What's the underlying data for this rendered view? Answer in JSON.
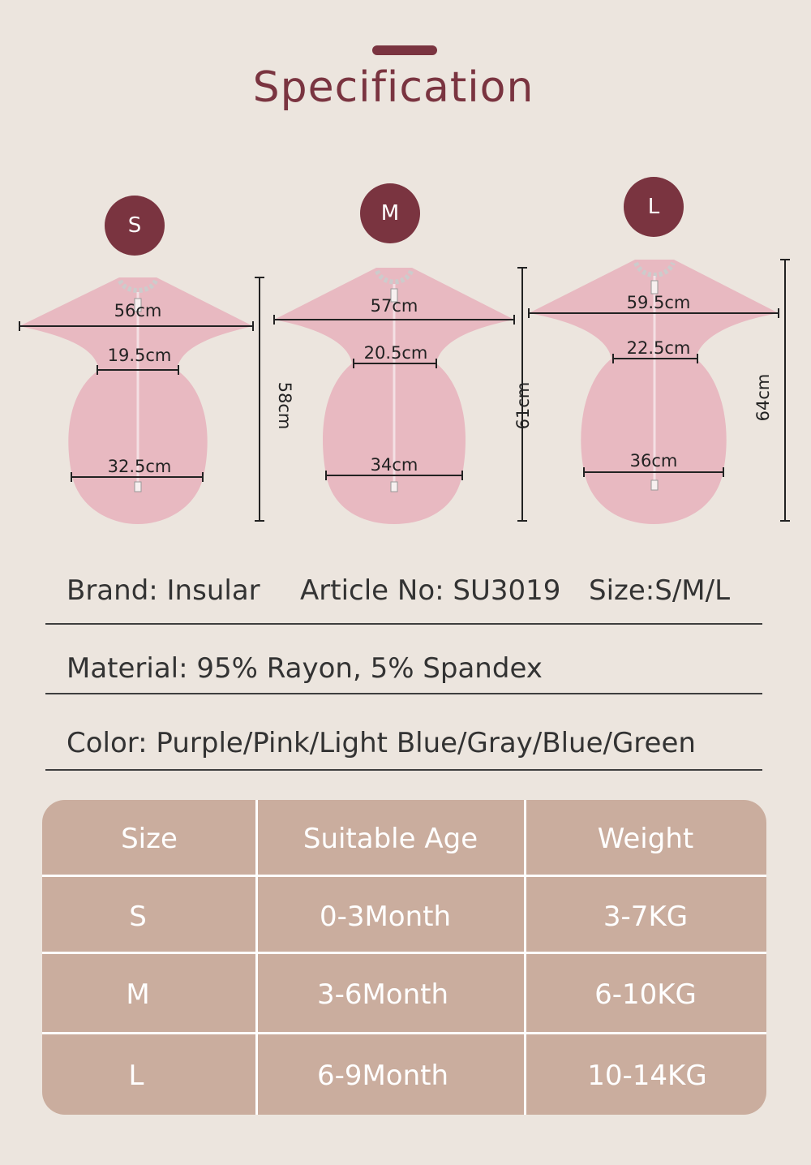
{
  "header": {
    "title": "Specification"
  },
  "sizes": [
    {
      "badge": "S",
      "chest": "56cm",
      "waist": "19.5cm",
      "hem": "32.5cm",
      "length": "58cm"
    },
    {
      "badge": "M",
      "chest": "57cm",
      "waist": "20.5cm",
      "hem": "34cm",
      "length": "61cm"
    },
    {
      "badge": "L",
      "chest": "59.5cm",
      "waist": "22.5cm",
      "hem": "36cm",
      "length": "64cm"
    }
  ],
  "specs": {
    "brand": "Brand: Insular",
    "article": "Article No: SU3019",
    "size": "Size:S/M/L",
    "material": "Material: 95% Rayon, 5% Spandex",
    "color": "Color: Purple/Pink/Light Blue/Gray/Blue/Green"
  },
  "table": {
    "headers": [
      "Size",
      "Suitable Age",
      "Weight"
    ],
    "rows": [
      [
        "S",
        "0-3Month",
        "3-7KG"
      ],
      [
        "M",
        "3-6Month",
        "6-10KG"
      ],
      [
        "L",
        "6-9Month",
        "10-14KG"
      ]
    ]
  },
  "colors": {
    "accent": "#7a3440",
    "garment": "#e8b9c1",
    "table": "#caad9e",
    "background": "#ece5de"
  }
}
